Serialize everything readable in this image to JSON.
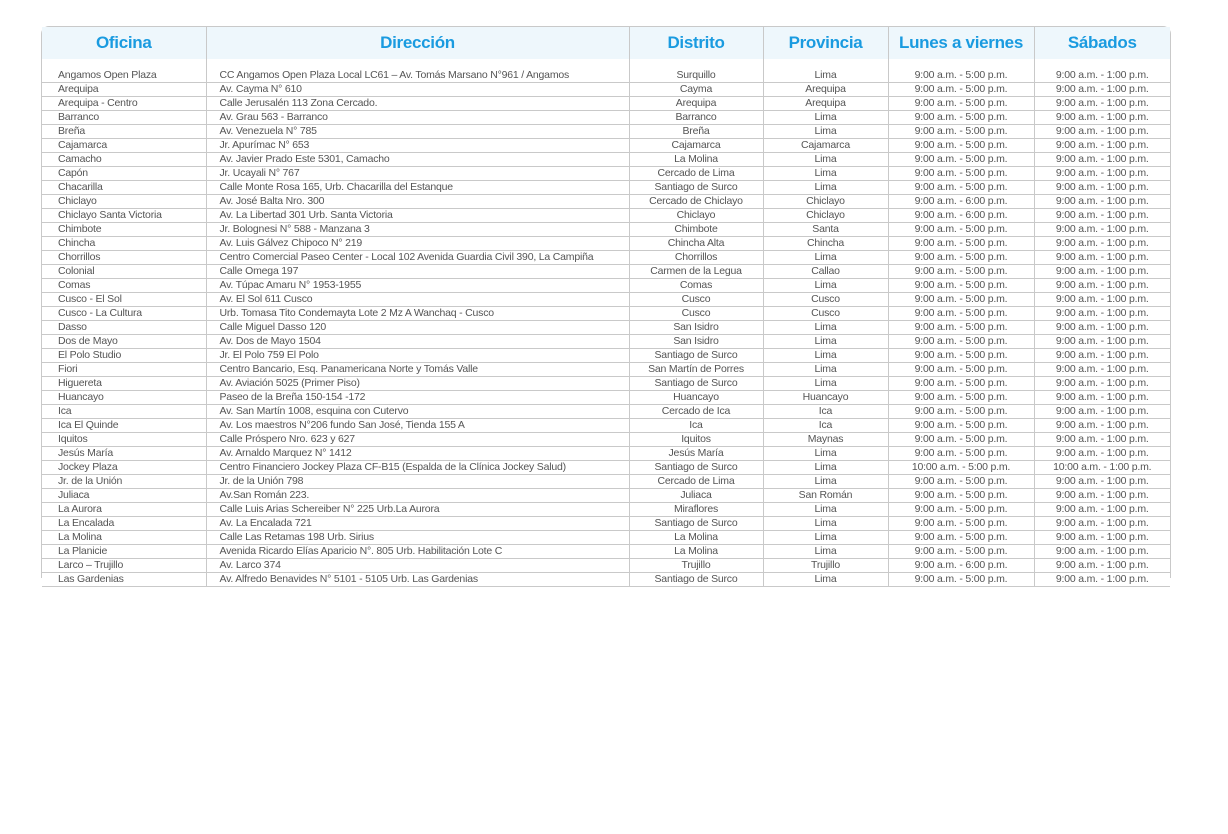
{
  "header": [
    "Oficina",
    "Dirección",
    "Distrito",
    "Provincia",
    "Lunes a viernes",
    "Sábados"
  ],
  "colors": {
    "header_text": "#1a9be0",
    "header_bg": "#eef7fc",
    "body_text": "#555555",
    "border": "#c9c9c9"
  },
  "rows": [
    [
      "Angamos Open Plaza",
      "CC Angamos Open Plaza Local LC61 – Av. Tomás Marsano N°961 / Angamos",
      "Surquillo",
      "Lima",
      "9:00 a.m. - 5:00 p.m.",
      "9:00 a.m. - 1:00 p.m."
    ],
    [
      "Arequipa",
      "Av. Cayma  N°  610",
      "Cayma",
      "Arequipa",
      "9:00 a.m. - 5:00 p.m.",
      "9:00 a.m. - 1:00 p.m."
    ],
    [
      "Arequipa - Centro",
      "Calle Jerusalén 113 Zona Cercado.",
      "Arequipa",
      "Arequipa",
      "9:00 a.m. - 5:00 p.m.",
      "9:00 a.m. - 1:00 p.m."
    ],
    [
      "Barranco",
      "Av. Grau 563  - Barranco",
      "Barranco",
      "Lima",
      "9:00 a.m. - 5:00 p.m.",
      "9:00 a.m. - 1:00 p.m."
    ],
    [
      "Breña",
      "Av. Venezuela N° 785",
      "Breña",
      "Lima",
      "9:00 a.m. - 5:00 p.m.",
      "9:00 a.m. - 1:00 p.m."
    ],
    [
      "Cajamarca",
      "Jr. Apurímac N° 653",
      "Cajamarca",
      "Cajamarca",
      "9:00 a.m. - 5:00 p.m.",
      "9:00 a.m. - 1:00 p.m."
    ],
    [
      "Camacho",
      "Av. Javier Prado Este 5301, Camacho",
      "La Molina",
      "Lima",
      "9:00 a.m. - 5:00 p.m.",
      "9:00 a.m. - 1:00 p.m."
    ],
    [
      "Capón",
      "Jr. Ucayali N° 767",
      "Cercado de Lima",
      "Lima",
      "9:00 a.m. - 5:00 p.m.",
      "9:00 a.m. - 1:00 p.m."
    ],
    [
      "Chacarilla",
      "Calle Monte Rosa 165, Urb. Chacarilla del Estanque",
      "Santiago de Surco",
      "Lima",
      "9:00 a.m. - 5:00 p.m.",
      "9:00 a.m. - 1:00 p.m."
    ],
    [
      "Chiclayo",
      "Av. José Balta Nro. 300",
      "Cercado de Chiclayo",
      "Chiclayo",
      "9:00 a.m. - 6:00 p.m.",
      "9:00 a.m. - 1:00 p.m."
    ],
    [
      "Chiclayo Santa Victoria",
      "Av. La Libertad 301  Urb. Santa Victoria",
      "Chiclayo",
      "Chiclayo",
      "9:00 a.m. - 6:00 p.m.",
      "9:00 a.m. - 1:00 p.m."
    ],
    [
      "Chimbote",
      "Jr. Bolognesi N° 588 - Manzana 3",
      "Chimbote",
      "Santa",
      "9:00 a.m. - 5:00 p.m.",
      "9:00 a.m. - 1:00 p.m."
    ],
    [
      "Chincha",
      "Av. Luis Gálvez Chipoco N° 219",
      "Chincha Alta",
      "Chincha",
      "9:00 a.m. - 5:00 p.m.",
      "9:00 a.m. - 1:00 p.m."
    ],
    [
      "Chorrillos",
      "Centro Comercial Paseo Center - Local 102 Avenida Guardia Civil 390, La Campiña",
      "Chorrillos",
      "Lima",
      "9:00 a.m. - 5:00 p.m.",
      "9:00 a.m. - 1:00 p.m."
    ],
    [
      "Colonial",
      "Calle Omega 197",
      "Carmen de la Legua",
      "Callao",
      "9:00 a.m. - 5:00 p.m.",
      "9:00 a.m. - 1:00 p.m."
    ],
    [
      "Comas",
      "Av. Túpac Amaru N° 1953-1955",
      "Comas",
      "Lima",
      "9:00 a.m. - 5:00 p.m.",
      "9:00 a.m. - 1:00 p.m."
    ],
    [
      "Cusco - El Sol",
      "Av. El Sol 611  Cusco",
      "Cusco",
      "Cusco",
      "9:00 a.m. - 5:00 p.m.",
      "9:00 a.m. - 1:00 p.m."
    ],
    [
      "Cusco - La Cultura",
      "Urb. Tomasa Tito Condemayta Lote 2 Mz A Wanchaq - Cusco",
      "Cusco",
      "Cusco",
      "9:00 a.m. - 5:00 p.m.",
      "9:00 a.m. - 1:00 p.m."
    ],
    [
      "Dasso",
      "Calle Miguel Dasso 120",
      "San Isidro",
      "Lima",
      "9:00 a.m. - 5:00 p.m.",
      "9:00 a.m. - 1:00 p.m."
    ],
    [
      "Dos de Mayo",
      "Av. Dos de Mayo 1504",
      "San Isidro",
      "Lima",
      "9:00 a.m. - 5:00 p.m.",
      "9:00 a.m. - 1:00 p.m."
    ],
    [
      "El Polo Studio",
      "Jr. El Polo 759 El Polo",
      "Santiago de Surco",
      "Lima",
      "9:00 a.m. - 5:00 p.m.",
      "9:00 a.m. - 1:00 p.m."
    ],
    [
      "Fiori",
      "Centro Bancario, Esq. Panamericana Norte y Tomás Valle",
      "San Martín de Porres",
      "Lima",
      "9:00 a.m. - 5:00 p.m.",
      "9:00 a.m. - 1:00 p.m."
    ],
    [
      "Higuereta",
      "Av. Aviación 5025 (Primer Piso)",
      "Santiago de Surco",
      "Lima",
      "9:00 a.m. - 5:00 p.m.",
      "9:00 a.m. - 1:00 p.m."
    ],
    [
      "Huancayo",
      "Paseo de la Breña 150-154 -172",
      "Huancayo",
      "Huancayo",
      "9:00 a.m. - 5:00 p.m.",
      "9:00 a.m. - 1:00 p.m."
    ],
    [
      "Ica",
      "Av. San Martín 1008, esquina con Cutervo",
      "Cercado de Ica",
      "Ica",
      "9:00 a.m. - 5:00 p.m.",
      "9:00 a.m. - 1:00 p.m."
    ],
    [
      "Ica El Quinde",
      "Av. Los maestros N°206 fundo San José, Tienda 155 A",
      "Ica",
      "Ica",
      "9:00 a.m. - 5:00 p.m.",
      "9:00 a.m. - 1:00 p.m."
    ],
    [
      "Iquitos",
      "Calle Próspero Nro. 623 y 627",
      "Iquitos",
      "Maynas",
      "9:00 a.m. - 5:00 p.m.",
      "9:00 a.m. - 1:00 p.m."
    ],
    [
      "Jesús María",
      "Av. Arnaldo Marquez N° 1412",
      "Jesús María",
      "Lima",
      "9:00 a.m. - 5:00 p.m.",
      "9:00 a.m. - 1:00 p.m."
    ],
    [
      "Jockey Plaza",
      "Centro Financiero Jockey Plaza CF-B15 (Espalda de la Clínica  Jockey Salud)",
      "Santiago de Surco",
      "Lima",
      "10:00 a.m. - 5:00 p.m.",
      "10:00 a.m. - 1:00 p.m."
    ],
    [
      "Jr. de la Unión",
      "Jr. de la Unión 798",
      "Cercado de Lima",
      "Lima",
      "9:00 a.m. - 5:00 p.m.",
      "9:00 a.m. - 1:00 p.m."
    ],
    [
      "Juliaca",
      "Av.San Román 223.",
      "Juliaca",
      "San Román",
      "9:00 a.m. - 5:00 p.m.",
      "9:00 a.m. - 1:00 p.m."
    ],
    [
      "La Aurora",
      "Calle Luis Arias Schereiber N° 225 Urb.La Aurora",
      "Miraflores",
      "Lima",
      "9:00 a.m. - 5:00 p.m.",
      "9:00 a.m. - 1:00 p.m."
    ],
    [
      "La Encalada",
      "Av. La Encalada 721",
      "Santiago de Surco",
      "Lima",
      "9:00 a.m. - 5:00 p.m.",
      "9:00 a.m. - 1:00 p.m."
    ],
    [
      "La Molina",
      "Calle Las Retamas 198 Urb. Sirius",
      "La Molina",
      "Lima",
      "9:00 a.m. - 5:00 p.m.",
      "9:00 a.m. - 1:00 p.m."
    ],
    [
      "La Planicie",
      "Avenida Ricardo Elías Aparicio N°. 805 Urb. Habilitación Lote C",
      "La Molina",
      "Lima",
      "9:00 a.m. - 5:00 p.m.",
      "9:00 a.m. - 1:00 p.m."
    ],
    [
      "Larco – Trujillo",
      "Av. Larco 374",
      "Trujillo",
      "Trujillo",
      "9:00 a.m. - 6:00 p.m.",
      "9:00 a.m. - 1:00 p.m."
    ],
    [
      "Las Gardenias",
      "Av. Alfredo Benavides N° 5101 - 5105 Urb. Las Gardenias",
      "Santiago de Surco",
      "Lima",
      "9:00 a.m. - 5:00 p.m.",
      "9:00 a.m. - 1:00 p.m."
    ]
  ]
}
